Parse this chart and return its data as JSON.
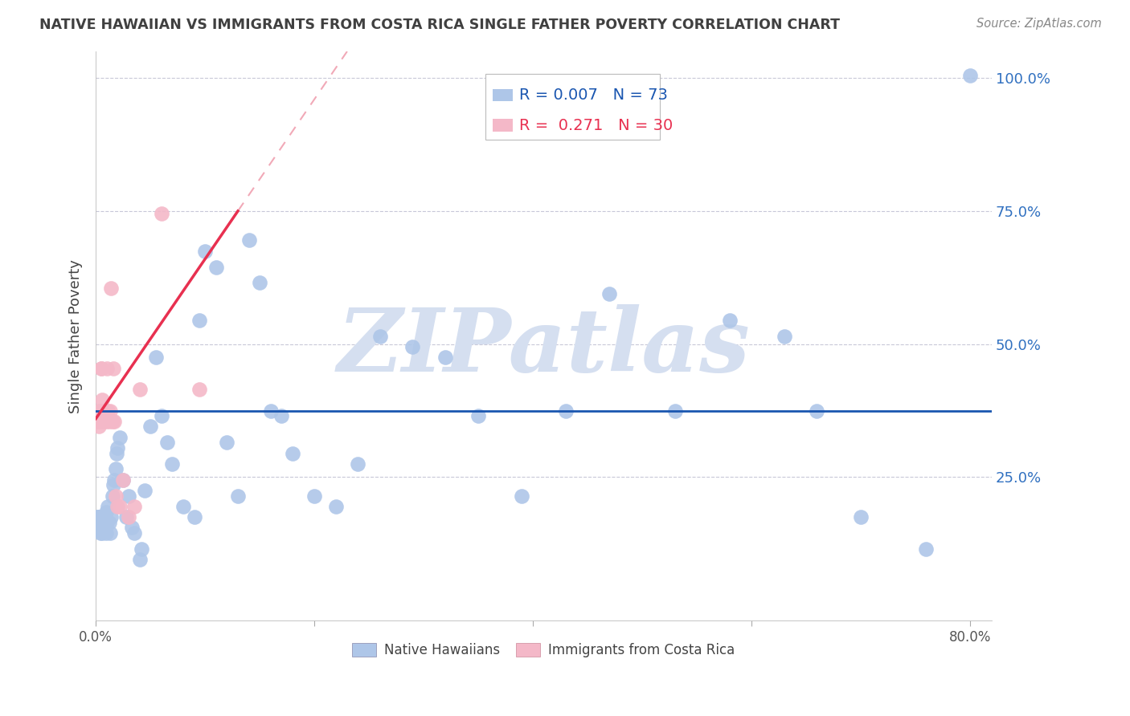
{
  "title": "NATIVE HAWAIIAN VS IMMIGRANTS FROM COSTA RICA SINGLE FATHER POVERTY CORRELATION CHART",
  "source": "Source: ZipAtlas.com",
  "ylabel": "Single Father Poverty",
  "watermark": "ZIPatlas",
  "r_blue": 0.007,
  "n_blue": 73,
  "r_pink": 0.271,
  "n_pink": 30,
  "xlim": [
    0.0,
    0.82
  ],
  "ylim": [
    -0.02,
    1.05
  ],
  "blue_line_y": 0.375,
  "blue_color": "#aec6e8",
  "pink_color": "#f4b8c8",
  "blue_line_color": "#1a56b0",
  "pink_line_color": "#e83050",
  "dashed_line_color": "#f0a0b0",
  "grid_color": "#c8c8d8",
  "title_color": "#404040",
  "right_axis_color": "#3070c0",
  "watermark_color": "#d5dff0",
  "blue_x": [
    0.001,
    0.002,
    0.003,
    0.003,
    0.004,
    0.004,
    0.004,
    0.005,
    0.005,
    0.006,
    0.006,
    0.006,
    0.007,
    0.007,
    0.008,
    0.008,
    0.008,
    0.009,
    0.009,
    0.01,
    0.011,
    0.012,
    0.013,
    0.014,
    0.015,
    0.016,
    0.017,
    0.018,
    0.019,
    0.02,
    0.022,
    0.025,
    0.028,
    0.03,
    0.033,
    0.035,
    0.04,
    0.042,
    0.045,
    0.05,
    0.055,
    0.06,
    0.065,
    0.07,
    0.08,
    0.09,
    0.095,
    0.1,
    0.11,
    0.12,
    0.13,
    0.14,
    0.15,
    0.16,
    0.17,
    0.18,
    0.2,
    0.22,
    0.24,
    0.26,
    0.29,
    0.32,
    0.35,
    0.39,
    0.43,
    0.47,
    0.53,
    0.58,
    0.63,
    0.66,
    0.7,
    0.76,
    0.8
  ],
  "blue_y": [
    0.175,
    0.175,
    0.175,
    0.155,
    0.175,
    0.155,
    0.145,
    0.175,
    0.165,
    0.145,
    0.165,
    0.155,
    0.165,
    0.155,
    0.155,
    0.175,
    0.165,
    0.145,
    0.185,
    0.165,
    0.195,
    0.165,
    0.145,
    0.175,
    0.215,
    0.235,
    0.245,
    0.265,
    0.295,
    0.305,
    0.325,
    0.245,
    0.175,
    0.215,
    0.155,
    0.145,
    0.095,
    0.115,
    0.225,
    0.345,
    0.475,
    0.365,
    0.315,
    0.275,
    0.195,
    0.175,
    0.545,
    0.675,
    0.645,
    0.315,
    0.215,
    0.695,
    0.615,
    0.375,
    0.365,
    0.295,
    0.215,
    0.195,
    0.275,
    0.515,
    0.495,
    0.475,
    0.365,
    0.215,
    0.375,
    0.595,
    0.375,
    0.545,
    0.515,
    0.375,
    0.175,
    0.115,
    1.005
  ],
  "pink_x": [
    0.001,
    0.002,
    0.003,
    0.003,
    0.004,
    0.004,
    0.005,
    0.005,
    0.006,
    0.007,
    0.007,
    0.008,
    0.009,
    0.01,
    0.011,
    0.012,
    0.013,
    0.014,
    0.015,
    0.016,
    0.017,
    0.018,
    0.02,
    0.022,
    0.025,
    0.03,
    0.035,
    0.04,
    0.06,
    0.095
  ],
  "pink_y": [
    0.355,
    0.355,
    0.345,
    0.375,
    0.355,
    0.375,
    0.455,
    0.455,
    0.395,
    0.375,
    0.355,
    0.375,
    0.355,
    0.455,
    0.375,
    0.355,
    0.375,
    0.605,
    0.355,
    0.455,
    0.355,
    0.215,
    0.195,
    0.195,
    0.245,
    0.175,
    0.195,
    0.415,
    0.745,
    0.415
  ],
  "pink_trend_x0": 0.0,
  "pink_trend_y0": 0.36,
  "pink_trend_x1": 0.13,
  "pink_trend_y1": 0.75
}
